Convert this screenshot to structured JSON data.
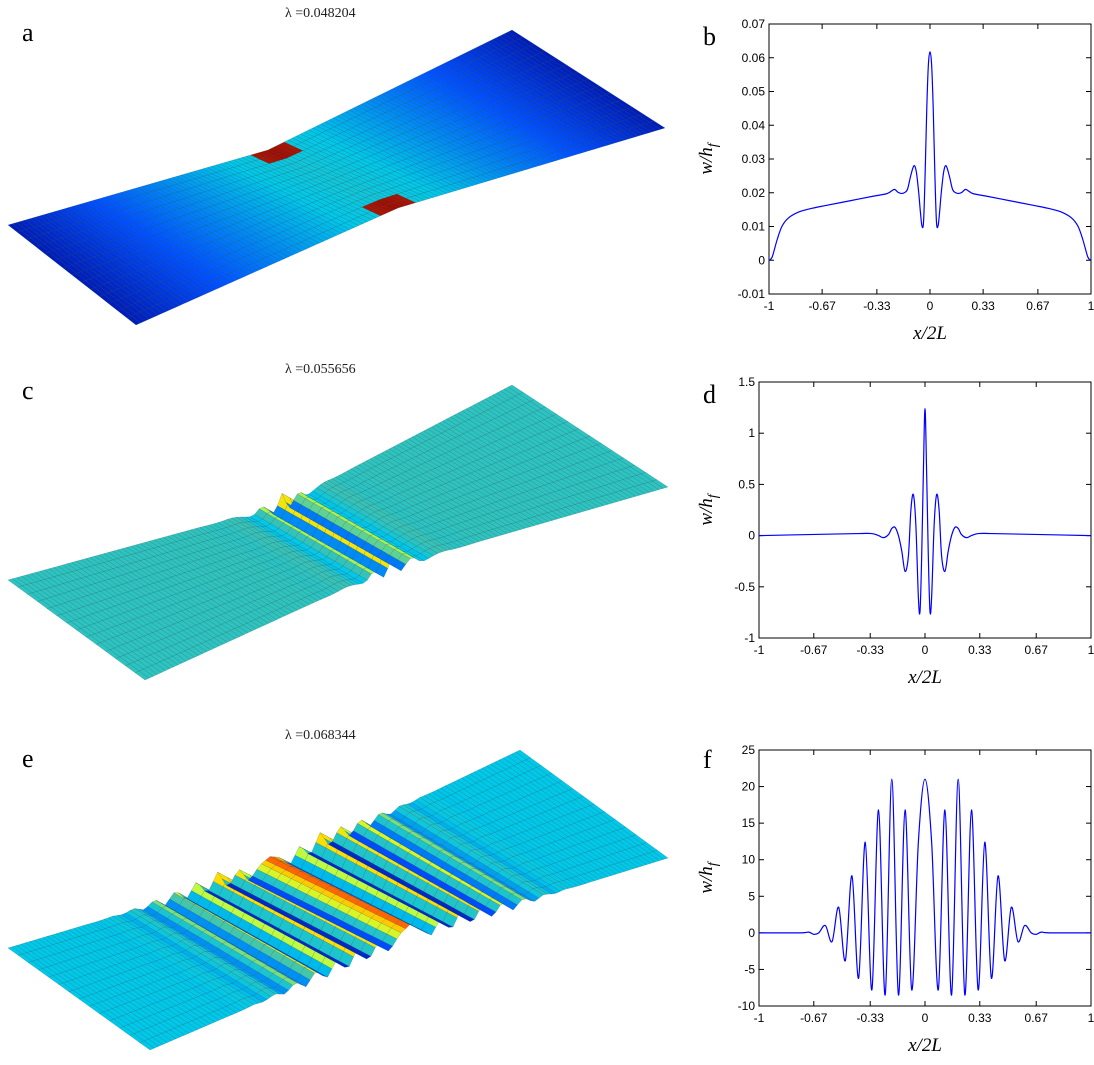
{
  "panels": {
    "a": {
      "letter": "a",
      "lambda": "λ =0.048204"
    },
    "b": {
      "letter": "b"
    },
    "c": {
      "letter": "c",
      "lambda": "λ =0.055656"
    },
    "d": {
      "letter": "d"
    },
    "e": {
      "letter": "e",
      "lambda": "λ =0.068344"
    },
    "f": {
      "letter": "f"
    }
  },
  "colormap": [
    "#00008f",
    "#0050ff",
    "#00c8e8",
    "#37c2b6",
    "#c8ff38",
    "#ffdc00",
    "#ff5000",
    "#900000"
  ],
  "chart_data": [
    {
      "id": "b",
      "type": "line",
      "xlabel": "x/2L",
      "ylabel": "w/h_f",
      "xlim": [
        -1,
        1
      ],
      "ylim": [
        -0.01,
        0.07
      ],
      "xticks": [
        -1,
        -0.67,
        -0.33,
        0,
        0.33,
        0.67,
        1
      ],
      "xtick_labels": [
        "-1",
        "-0.67",
        "-0.33",
        "0",
        "0.33",
        "0.67",
        "1"
      ],
      "yticks": [
        -0.01,
        0,
        0.01,
        0.02,
        0.03,
        0.04,
        0.05,
        0.06,
        0.07
      ],
      "ytick_labels": [
        "-0.01",
        "0",
        "0.01",
        "0.02",
        "0.03",
        "0.04",
        "0.05",
        "0.06",
        "0.07"
      ],
      "grid": false,
      "series": [
        {
          "color": "#0000ff",
          "x": [
            -1,
            -0.98,
            -0.95,
            -0.92,
            -0.88,
            -0.82,
            -0.75,
            -0.65,
            -0.5,
            -0.35,
            -0.27,
            -0.24,
            -0.22,
            -0.2,
            -0.18,
            -0.16,
            -0.14,
            -0.12,
            -0.1,
            -0.085,
            -0.07,
            -0.06,
            -0.05,
            -0.04,
            -0.03,
            -0.02,
            -0.01,
            0,
            0.01,
            0.02,
            0.03,
            0.04,
            0.05,
            0.06,
            0.07,
            0.085,
            0.1,
            0.12,
            0.14,
            0.16,
            0.18,
            0.2,
            0.22,
            0.24,
            0.27,
            0.35,
            0.5,
            0.65,
            0.75,
            0.82,
            0.88,
            0.92,
            0.95,
            0.98,
            1
          ],
          "y": [
            0,
            0.001,
            0.006,
            0.01,
            0.0125,
            0.0142,
            0.0152,
            0.0162,
            0.0176,
            0.019,
            0.0197,
            0.0205,
            0.021,
            0.0202,
            0.0198,
            0.02,
            0.021,
            0.025,
            0.028,
            0.0262,
            0.02,
            0.0145,
            0.0102,
            0.0115,
            0.026,
            0.045,
            0.058,
            0.0618,
            0.058,
            0.045,
            0.026,
            0.0115,
            0.0102,
            0.0145,
            0.02,
            0.0262,
            0.028,
            0.025,
            0.021,
            0.02,
            0.0198,
            0.0202,
            0.021,
            0.0205,
            0.0197,
            0.019,
            0.0176,
            0.0162,
            0.0152,
            0.0142,
            0.0125,
            0.01,
            0.006,
            0.001,
            0
          ]
        }
      ]
    },
    {
      "id": "d",
      "type": "line",
      "xlabel": "x/2L",
      "ylabel": "w/h_f",
      "xlim": [
        -1,
        1
      ],
      "ylim": [
        -1,
        1.5
      ],
      "xticks": [
        -1,
        -0.67,
        -0.33,
        0,
        0.33,
        0.67,
        1
      ],
      "xtick_labels": [
        "-1",
        "-0.67",
        "-0.33",
        "0",
        "0.33",
        "0.67",
        "1"
      ],
      "yticks": [
        -1,
        -0.5,
        0,
        0.5,
        1,
        1.5
      ],
      "ytick_labels": [
        "-1",
        "-0.5",
        "0",
        "0.5",
        "1",
        "1.5"
      ],
      "grid": false,
      "series": [
        {
          "color": "#0000ff",
          "x": [
            -1,
            -0.7,
            -0.4,
            -0.32,
            -0.28,
            -0.25,
            -0.22,
            -0.2,
            -0.18,
            -0.16,
            -0.14,
            -0.12,
            -0.1,
            -0.085,
            -0.07,
            -0.055,
            -0.04,
            -0.03,
            -0.02,
            -0.01,
            0,
            0.01,
            0.02,
            0.03,
            0.04,
            0.055,
            0.07,
            0.085,
            0.1,
            0.12,
            0.14,
            0.16,
            0.18,
            0.2,
            0.22,
            0.25,
            0.28,
            0.32,
            0.4,
            0.7,
            1
          ],
          "y": [
            0,
            0.01,
            0.02,
            0.02,
            0.0,
            -0.02,
            0.01,
            0.07,
            0.08,
            0.0,
            -0.15,
            -0.35,
            -0.2,
            0.25,
            0.4,
            0.1,
            -0.6,
            -0.74,
            -0.2,
            0.6,
            1.24,
            0.6,
            -0.2,
            -0.74,
            -0.6,
            0.1,
            0.4,
            0.25,
            -0.2,
            -0.35,
            -0.15,
            0.0,
            0.08,
            0.07,
            0.01,
            -0.02,
            0.0,
            0.02,
            0.02,
            0.01,
            0
          ]
        }
      ]
    },
    {
      "id": "f",
      "type": "line",
      "xlabel": "x/2L",
      "ylabel": "w/h_f",
      "xlim": [
        -1,
        1
      ],
      "ylim": [
        -10,
        25
      ],
      "xticks": [
        -1,
        -0.67,
        -0.33,
        0,
        0.33,
        0.67,
        1
      ],
      "xtick_labels": [
        "-1",
        "-0.67",
        "-0.33",
        "0",
        "0.33",
        "0.67",
        "1"
      ],
      "yticks": [
        -10,
        -5,
        0,
        5,
        10,
        15,
        20,
        25
      ],
      "ytick_labels": [
        "-10",
        "-5",
        "0",
        "5",
        "10",
        "15",
        "20",
        "25"
      ],
      "grid": false,
      "series": [
        {
          "color": "#0000ff",
          "x": [
            -1,
            -0.75,
            -0.7,
            -0.67,
            -0.64,
            -0.6,
            -0.56,
            -0.52,
            -0.48,
            -0.44,
            -0.4,
            -0.36,
            -0.32,
            -0.28,
            -0.24,
            -0.2,
            -0.16,
            -0.12,
            -0.08,
            -0.04,
            0,
            0.04,
            0.08,
            0.12,
            0.16,
            0.2,
            0.24,
            0.28,
            0.32,
            0.36,
            0.4,
            0.44,
            0.48,
            0.52,
            0.56,
            0.6,
            0.64,
            0.67,
            0.7,
            0.75,
            1
          ],
          "y": [
            0,
            0,
            0.1,
            -0.2,
            0.0,
            1.0,
            -1.2,
            3.5,
            -3.8,
            7.8,
            -6.2,
            12.4,
            -7.8,
            16.8,
            -8.5,
            21.0,
            -8.5,
            16.8,
            -7.8,
            12.4,
            21.0,
            12.4,
            -7.8,
            16.8,
            -8.5,
            21.0,
            -8.5,
            16.8,
            -7.8,
            12.4,
            -6.2,
            7.8,
            -3.8,
            3.5,
            -1.2,
            1.0,
            0.0,
            -0.2,
            0.1,
            0,
            0
          ]
        }
      ]
    }
  ]
}
